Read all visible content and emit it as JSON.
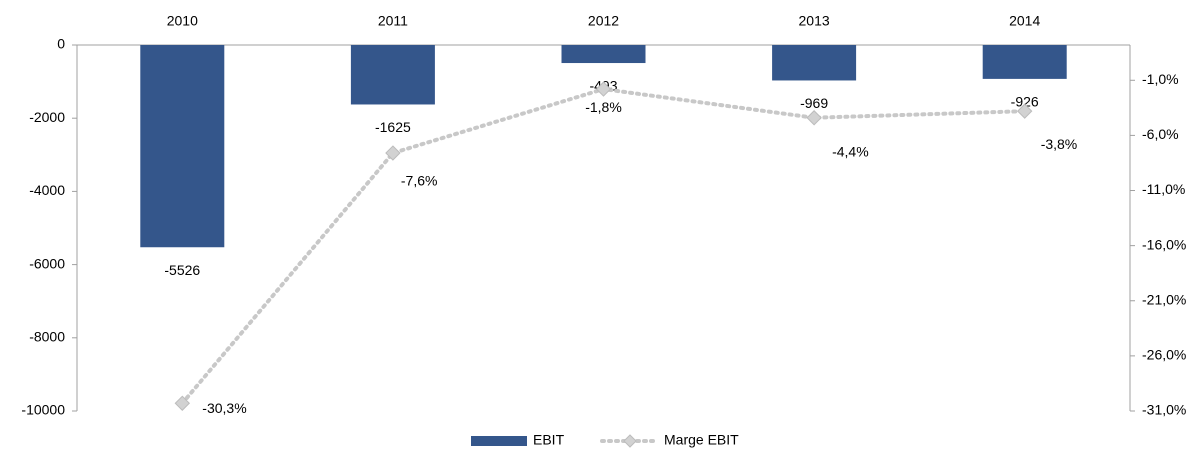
{
  "chart_data": {
    "type": "bar_line",
    "categories": [
      "2010",
      "2011",
      "2012",
      "2013",
      "2014"
    ],
    "series": [
      {
        "name": "EBIT",
        "type": "bar",
        "color": "#34568b",
        "values": [
          -5526,
          -1625,
          -493,
          -969,
          -926
        ]
      },
      {
        "name": "Marge EBIT",
        "type": "line",
        "axis": "y2",
        "color": "#c8c8c8",
        "values": [
          -30.3,
          -7.6,
          -1.8,
          -4.4,
          -3.8
        ],
        "value_labels": [
          "-30,3%",
          "-7,6%",
          "-1,8%",
          "-4,4%",
          "-3,8%"
        ]
      }
    ],
    "ylim": [
      -10000,
      0
    ],
    "yticks": [
      0,
      -2000,
      -4000,
      -6000,
      -8000,
      -10000
    ],
    "y2lim": [
      -31,
      2.2
    ],
    "y2ticks": [
      {
        "value": -1,
        "label": "-1,0%"
      },
      {
        "value": -6,
        "label": "-6,0%"
      },
      {
        "value": -11,
        "label": "-11,0%"
      },
      {
        "value": -16,
        "label": "-16,0%"
      },
      {
        "value": -21,
        "label": "-21,0%"
      },
      {
        "value": -26,
        "label": "-26,0%"
      },
      {
        "value": -31,
        "label": "-31,0%"
      }
    ],
    "legend": "bottom"
  }
}
